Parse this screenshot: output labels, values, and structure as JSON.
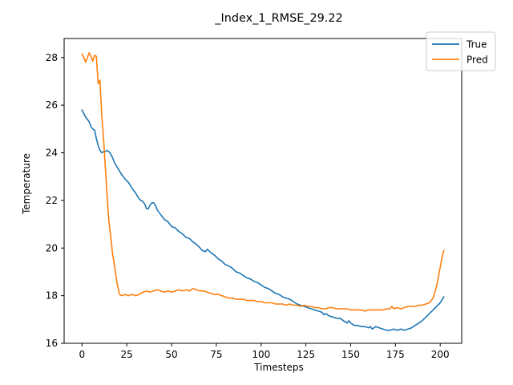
{
  "chart_data": {
    "type": "line",
    "title": "_Index_1_RMSE_29.22",
    "xlabel": "Timesteps",
    "ylabel": "Temperature",
    "xlim": [
      -10,
      212
    ],
    "ylim": [
      16,
      28.8
    ],
    "xticks": [
      0,
      25,
      50,
      75,
      100,
      125,
      150,
      175,
      200
    ],
    "yticks": [
      16,
      18,
      20,
      22,
      24,
      26,
      28
    ],
    "legend_position": "top-right",
    "grid": false,
    "series": [
      {
        "name": "True",
        "color": "#1f77b4",
        "points": [
          [
            0,
            25.8
          ],
          [
            1,
            25.65
          ],
          [
            2,
            25.5
          ],
          [
            3,
            25.4
          ],
          [
            4,
            25.3
          ],
          [
            5,
            25.1
          ],
          [
            6,
            25.0
          ],
          [
            7,
            24.95
          ],
          [
            8,
            24.6
          ],
          [
            9,
            24.3
          ],
          [
            10,
            24.1
          ],
          [
            11,
            24.0
          ],
          [
            12,
            24.05
          ],
          [
            13,
            24.05
          ],
          [
            14,
            24.1
          ],
          [
            15,
            24.05
          ],
          [
            16,
            23.95
          ],
          [
            17,
            23.8
          ],
          [
            18,
            23.6
          ],
          [
            20,
            23.35
          ],
          [
            22,
            23.1
          ],
          [
            24,
            22.9
          ],
          [
            26,
            22.75
          ],
          [
            28,
            22.5
          ],
          [
            30,
            22.3
          ],
          [
            32,
            22.05
          ],
          [
            34,
            21.95
          ],
          [
            35,
            21.85
          ],
          [
            36,
            21.65
          ],
          [
            37,
            21.65
          ],
          [
            38,
            21.8
          ],
          [
            39,
            21.9
          ],
          [
            40,
            21.9
          ],
          [
            41,
            21.8
          ],
          [
            42,
            21.6
          ],
          [
            44,
            21.4
          ],
          [
            46,
            21.2
          ],
          [
            48,
            21.1
          ],
          [
            50,
            20.9
          ],
          [
            52,
            20.85
          ],
          [
            54,
            20.7
          ],
          [
            56,
            20.6
          ],
          [
            58,
            20.45
          ],
          [
            60,
            20.4
          ],
          [
            62,
            20.25
          ],
          [
            64,
            20.15
          ],
          [
            66,
            20.0
          ],
          [
            67,
            19.9
          ],
          [
            69,
            19.85
          ],
          [
            70,
            19.95
          ],
          [
            72,
            19.8
          ],
          [
            74,
            19.7
          ],
          [
            76,
            19.55
          ],
          [
            78,
            19.45
          ],
          [
            80,
            19.3
          ],
          [
            82,
            19.25
          ],
          [
            84,
            19.15
          ],
          [
            86,
            19.0
          ],
          [
            88,
            18.95
          ],
          [
            90,
            18.85
          ],
          [
            92,
            18.75
          ],
          [
            94,
            18.7
          ],
          [
            96,
            18.6
          ],
          [
            98,
            18.55
          ],
          [
            100,
            18.45
          ],
          [
            102,
            18.35
          ],
          [
            104,
            18.3
          ],
          [
            106,
            18.2
          ],
          [
            108,
            18.1
          ],
          [
            110,
            18.05
          ],
          [
            112,
            17.95
          ],
          [
            114,
            17.9
          ],
          [
            116,
            17.85
          ],
          [
            118,
            17.75
          ],
          [
            120,
            17.65
          ],
          [
            122,
            17.6
          ],
          [
            124,
            17.55
          ],
          [
            126,
            17.5
          ],
          [
            128,
            17.45
          ],
          [
            130,
            17.4
          ],
          [
            132,
            17.35
          ],
          [
            134,
            17.3
          ],
          [
            135,
            17.2
          ],
          [
            136,
            17.25
          ],
          [
            138,
            17.15
          ],
          [
            140,
            17.1
          ],
          [
            142,
            17.05
          ],
          [
            144,
            17.05
          ],
          [
            146,
            16.95
          ],
          [
            148,
            16.85
          ],
          [
            149,
            16.95
          ],
          [
            150,
            16.85
          ],
          [
            152,
            16.75
          ],
          [
            154,
            16.75
          ],
          [
            156,
            16.7
          ],
          [
            158,
            16.7
          ],
          [
            160,
            16.65
          ],
          [
            161,
            16.7
          ],
          [
            162,
            16.6
          ],
          [
            164,
            16.7
          ],
          [
            166,
            16.65
          ],
          [
            168,
            16.6
          ],
          [
            170,
            16.55
          ],
          [
            172,
            16.55
          ],
          [
            174,
            16.6
          ],
          [
            176,
            16.55
          ],
          [
            178,
            16.6
          ],
          [
            180,
            16.55
          ],
          [
            182,
            16.6
          ],
          [
            184,
            16.65
          ],
          [
            186,
            16.75
          ],
          [
            188,
            16.85
          ],
          [
            190,
            16.95
          ],
          [
            192,
            17.1
          ],
          [
            194,
            17.25
          ],
          [
            196,
            17.4
          ],
          [
            198,
            17.55
          ],
          [
            200,
            17.7
          ],
          [
            202,
            17.95
          ]
        ]
      },
      {
        "name": "Pred",
        "color": "#ff7f0e",
        "points": [
          [
            0,
            28.15
          ],
          [
            1,
            28.0
          ],
          [
            2,
            27.8
          ],
          [
            3,
            28.0
          ],
          [
            4,
            28.2
          ],
          [
            5,
            28.05
          ],
          [
            6,
            27.85
          ],
          [
            7,
            28.1
          ],
          [
            8,
            28.05
          ],
          [
            9,
            26.9
          ],
          [
            10,
            27.05
          ],
          [
            11,
            25.6
          ],
          [
            12,
            24.6
          ],
          [
            13,
            23.4
          ],
          [
            14,
            22.2
          ],
          [
            15,
            21.1
          ],
          [
            16,
            20.5
          ],
          [
            17,
            19.8
          ],
          [
            18,
            19.3
          ],
          [
            19,
            18.8
          ],
          [
            20,
            18.35
          ],
          [
            21,
            18.05
          ],
          [
            22,
            18.0
          ],
          [
            24,
            18.05
          ],
          [
            26,
            18.0
          ],
          [
            28,
            18.05
          ],
          [
            30,
            18.0
          ],
          [
            32,
            18.05
          ],
          [
            34,
            18.15
          ],
          [
            36,
            18.2
          ],
          [
            38,
            18.15
          ],
          [
            40,
            18.2
          ],
          [
            42,
            18.25
          ],
          [
            44,
            18.2
          ],
          [
            46,
            18.15
          ],
          [
            48,
            18.2
          ],
          [
            50,
            18.15
          ],
          [
            52,
            18.2
          ],
          [
            54,
            18.25
          ],
          [
            56,
            18.2
          ],
          [
            58,
            18.25
          ],
          [
            60,
            18.2
          ],
          [
            62,
            18.3
          ],
          [
            64,
            18.25
          ],
          [
            66,
            18.2
          ],
          [
            68,
            18.2
          ],
          [
            70,
            18.15
          ],
          [
            72,
            18.1
          ],
          [
            74,
            18.05
          ],
          [
            76,
            18.05
          ],
          [
            78,
            18.0
          ],
          [
            80,
            17.95
          ],
          [
            82,
            17.9
          ],
          [
            84,
            17.9
          ],
          [
            86,
            17.85
          ],
          [
            88,
            17.85
          ],
          [
            90,
            17.85
          ],
          [
            92,
            17.8
          ],
          [
            94,
            17.8
          ],
          [
            96,
            17.8
          ],
          [
            98,
            17.75
          ],
          [
            100,
            17.75
          ],
          [
            102,
            17.7
          ],
          [
            104,
            17.7
          ],
          [
            106,
            17.7
          ],
          [
            108,
            17.65
          ],
          [
            110,
            17.65
          ],
          [
            112,
            17.65
          ],
          [
            114,
            17.6
          ],
          [
            116,
            17.65
          ],
          [
            118,
            17.6
          ],
          [
            120,
            17.6
          ],
          [
            122,
            17.55
          ],
          [
            124,
            17.6
          ],
          [
            126,
            17.55
          ],
          [
            128,
            17.55
          ],
          [
            130,
            17.5
          ],
          [
            132,
            17.5
          ],
          [
            134,
            17.45
          ],
          [
            136,
            17.45
          ],
          [
            138,
            17.5
          ],
          [
            140,
            17.5
          ],
          [
            142,
            17.45
          ],
          [
            144,
            17.45
          ],
          [
            146,
            17.45
          ],
          [
            148,
            17.45
          ],
          [
            150,
            17.4
          ],
          [
            152,
            17.4
          ],
          [
            154,
            17.4
          ],
          [
            156,
            17.4
          ],
          [
            158,
            17.35
          ],
          [
            160,
            17.4
          ],
          [
            162,
            17.4
          ],
          [
            164,
            17.4
          ],
          [
            166,
            17.4
          ],
          [
            168,
            17.4
          ],
          [
            170,
            17.45
          ],
          [
            172,
            17.45
          ],
          [
            173,
            17.55
          ],
          [
            174,
            17.45
          ],
          [
            176,
            17.5
          ],
          [
            178,
            17.45
          ],
          [
            180,
            17.5
          ],
          [
            182,
            17.55
          ],
          [
            184,
            17.55
          ],
          [
            186,
            17.55
          ],
          [
            188,
            17.6
          ],
          [
            190,
            17.6
          ],
          [
            192,
            17.65
          ],
          [
            194,
            17.7
          ],
          [
            196,
            17.9
          ],
          [
            198,
            18.4
          ],
          [
            200,
            19.2
          ],
          [
            201,
            19.6
          ],
          [
            202,
            19.9
          ]
        ]
      }
    ]
  }
}
